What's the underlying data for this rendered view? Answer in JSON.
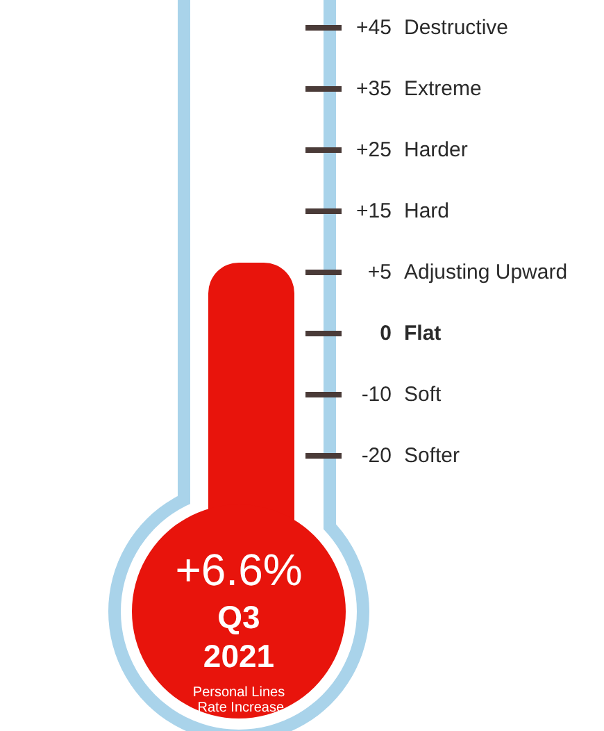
{
  "chart_data": {
    "type": "other",
    "values": [
      6.6
    ],
    "value_labels": [
      "+6.6%"
    ],
    "color": "#e8140c",
    "annotations": [
      "Q3",
      "2021",
      "Personal Lines Rate Increase",
      "+45",
      "Destructive",
      "+35",
      "Extreme",
      "+25",
      "Harder",
      "+15",
      "Hard",
      "+5",
      "Adjusting Upward",
      "0",
      "Flat",
      "-10",
      "Soft",
      "-20",
      "Softer"
    ]
  }
}
